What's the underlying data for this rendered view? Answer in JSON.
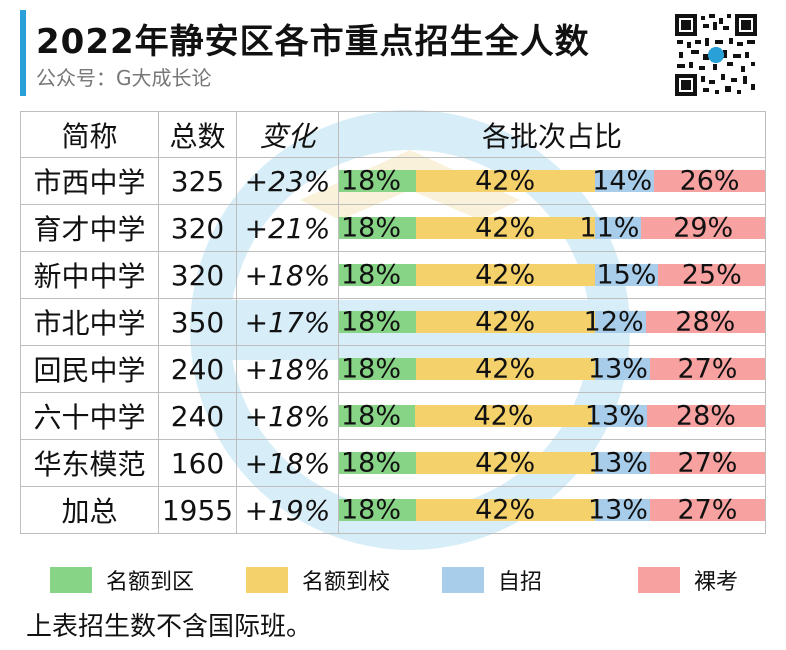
{
  "header": {
    "title": "2022年静安区各市重点招生全人数",
    "subtitle": "公众号：G大成长论"
  },
  "chart_data": {
    "type": "table",
    "columns": [
      "简称",
      "总数",
      "变化",
      "各批次占比"
    ],
    "categories": [
      "名额到区",
      "名额到校",
      "自招",
      "裸考"
    ],
    "colors": [
      "#88d487",
      "#f5d16b",
      "#a8cdea",
      "#f7a1a1"
    ],
    "rows": [
      {
        "name": "市西中学",
        "total": "325",
        "change": "+23%",
        "shares": [
          18,
          42,
          14,
          26
        ]
      },
      {
        "name": "育才中学",
        "total": "320",
        "change": "+21%",
        "shares": [
          18,
          42,
          11,
          29
        ]
      },
      {
        "name": "新中中学",
        "total": "320",
        "change": "+18%",
        "shares": [
          18,
          42,
          15,
          25
        ]
      },
      {
        "name": "市北中学",
        "total": "350",
        "change": "+17%",
        "shares": [
          18,
          42,
          12,
          28
        ]
      },
      {
        "name": "回民中学",
        "total": "240",
        "change": "+18%",
        "shares": [
          18,
          42,
          13,
          27
        ]
      },
      {
        "name": "六十中学",
        "total": "240",
        "change": "+18%",
        "shares": [
          18,
          42,
          13,
          28
        ]
      },
      {
        "name": "华东模范",
        "total": "160",
        "change": "+18%",
        "shares": [
          18,
          42,
          13,
          27
        ]
      },
      {
        "name": "加总",
        "total": "1955",
        "change": "+19%",
        "shares": [
          18,
          42,
          13,
          27
        ]
      }
    ]
  },
  "legend": {
    "items": [
      {
        "label": "名额到区",
        "color": "#88d487"
      },
      {
        "label": "名额到校",
        "color": "#f5d16b"
      },
      {
        "label": "自招",
        "color": "#a8cdea"
      },
      {
        "label": "裸考",
        "color": "#f7a1a1"
      }
    ]
  },
  "footer": {
    "note": "上表招生数不含国际班。"
  }
}
